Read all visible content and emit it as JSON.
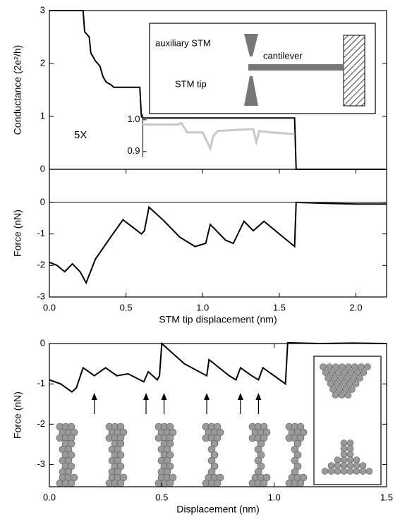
{
  "chart_data": [
    {
      "type": "line",
      "ylabel": "Conductance (2e²/h)",
      "xlim": [
        0,
        2.2
      ],
      "ylim": [
        0,
        3
      ],
      "yticks": [
        0,
        1,
        2,
        3
      ],
      "y2lim": [
        0.844,
        1.344
      ],
      "y2ticks": [
        {
          "value": 1.0,
          "label": "1.0"
        },
        {
          "value": 0.9,
          "label": "0.9"
        }
      ],
      "magnification_label": "5X",
      "inset_labels": [
        "auxiliary STM",
        "cantilever",
        "STM tip"
      ],
      "series": [
        {
          "color": "#000000",
          "x": [
            0,
            0.22,
            0.23,
            0.26,
            0.27,
            0.3,
            0.33,
            0.35,
            0.37,
            0.4,
            0.42,
            0.5,
            0.59,
            0.6,
            0.61,
            1.0,
            1.6,
            1.61,
            2.2
          ],
          "values": [
            3,
            3,
            2.6,
            2.5,
            2.2,
            2.05,
            1.95,
            1.75,
            1.65,
            1.6,
            1.55,
            1.55,
            1.55,
            1.0,
            0.97,
            0.97,
            0.97,
            0,
            0
          ]
        },
        {
          "color": "#c8c8c8",
          "axis": "y2",
          "x": [
            0.61,
            0.8,
            0.84,
            0.86,
            0.9,
            1.0,
            1.03,
            1.05,
            1.07,
            1.1,
            1.3,
            1.33,
            1.35,
            1.37,
            1.45,
            1.6
          ],
          "values": [
            0.985,
            0.985,
            0.985,
            0.99,
            0.96,
            0.96,
            0.93,
            0.91,
            0.95,
            0.965,
            0.97,
            0.97,
            0.93,
            0.965,
            0.96,
            0.955
          ]
        }
      ]
    },
    {
      "type": "line",
      "xlabel": "STM tip displacement (nm)",
      "ylabel": "Force (nN)",
      "xlim": [
        0,
        2.2
      ],
      "ylim": [
        -3,
        1.05
      ],
      "yticks": [
        -3,
        -2,
        -1,
        0
      ],
      "xticks": [
        {
          "value": 0,
          "label": "0.0"
        },
        {
          "value": 0.5,
          "label": "0.5"
        },
        {
          "value": 1,
          "label": "1.0"
        },
        {
          "value": 1.5,
          "label": "1.5"
        },
        {
          "value": 2,
          "label": "2.0"
        }
      ],
      "series": [
        {
          "color": "#000000",
          "x": [
            0,
            0.05,
            0.1,
            0.15,
            0.2,
            0.24,
            0.3,
            0.4,
            0.48,
            0.52,
            0.6,
            0.62,
            0.65,
            0.75,
            0.85,
            0.95,
            1.02,
            1.05,
            1.15,
            1.2,
            1.27,
            1.33,
            1.4,
            1.5,
            1.6,
            1.61,
            1.8,
            2.0,
            2.2
          ],
          "values": [
            -1.9,
            -2.0,
            -2.2,
            -1.95,
            -2.2,
            -2.55,
            -1.8,
            -1.1,
            -0.55,
            -0.7,
            -1.0,
            -0.9,
            -0.15,
            -0.6,
            -1.1,
            -1.4,
            -1.3,
            -0.7,
            -1.2,
            -1.3,
            -0.6,
            -0.9,
            -0.6,
            -1.0,
            -1.4,
            0,
            -0.03,
            -0.05,
            -0.05
          ]
        }
      ]
    },
    {
      "type": "line",
      "xlabel": "Displacement (nm)",
      "ylabel": "Force (nN)",
      "xlim": [
        0,
        1.5
      ],
      "ylim": [
        -3.55,
        0
      ],
      "yticks": [
        -3,
        -2,
        -1,
        0
      ],
      "xticks": [
        {
          "value": 0,
          "label": "0.0"
        },
        {
          "value": 0.5,
          "label": "0.5"
        },
        {
          "value": 1,
          "label": "1.0"
        },
        {
          "value": 1.5,
          "label": "1.5"
        }
      ],
      "arrows_x": [
        0.2,
        0.43,
        0.51,
        0.7,
        0.85,
        0.93
      ],
      "series": [
        {
          "color": "#000000",
          "x": [
            0,
            0.05,
            0.1,
            0.12,
            0.15,
            0.2,
            0.25,
            0.3,
            0.35,
            0.42,
            0.44,
            0.48,
            0.49,
            0.5,
            0.6,
            0.7,
            0.71,
            0.8,
            0.83,
            0.85,
            0.9,
            0.93,
            0.95,
            1.05,
            1.06,
            1.2,
            1.35,
            1.5
          ],
          "values": [
            -0.9,
            -1.0,
            -1.2,
            -1.1,
            -0.6,
            -0.8,
            -0.6,
            -0.8,
            -0.75,
            -0.95,
            -0.7,
            -0.9,
            -0.8,
            0,
            -0.5,
            -0.8,
            -0.4,
            -0.8,
            -0.9,
            -0.6,
            -0.8,
            -0.9,
            -0.6,
            -1.0,
            0.02,
            0,
            0.01,
            0
          ]
        }
      ]
    }
  ]
}
